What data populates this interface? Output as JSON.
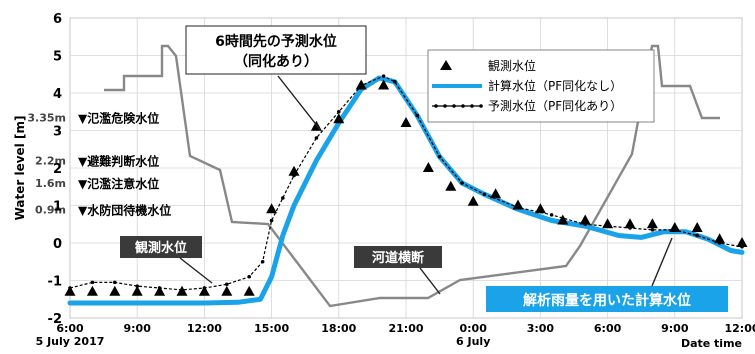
{
  "chart_data": {
    "type": "line",
    "ylabel": "Water level [m]",
    "ylim": [
      -2,
      6
    ],
    "xlim": [
      6,
      36
    ],
    "y_ticks": [
      "-2",
      "-1",
      "0",
      "1",
      "2",
      "3",
      "4",
      "5",
      "6"
    ],
    "x_ticks": [
      {
        "x": 6,
        "label": "6:00"
      },
      {
        "x": 9,
        "label": "9:00"
      },
      {
        "x": 12,
        "label": "12:00"
      },
      {
        "x": 15,
        "label": "15:00"
      },
      {
        "x": 18,
        "label": "18:00"
      },
      {
        "x": 21,
        "label": "21:00"
      },
      {
        "x": 24,
        "label": "0:00"
      },
      {
        "x": 27,
        "label": "3:00"
      },
      {
        "x": 30,
        "label": "6:00"
      },
      {
        "x": 33,
        "label": "9:00"
      },
      {
        "x": 36,
        "label": "12:00"
      }
    ],
    "date_labels": [
      {
        "x": 6,
        "label": "5 July 2017"
      },
      {
        "x": 24,
        "label": "6 July"
      }
    ],
    "x_axis_title": "Date time",
    "grid": true,
    "legend": {
      "position": "top-right",
      "entries": [
        "観測水位",
        "計算水位（PF同化なし）",
        "予測水位（PF同化あり）"
      ]
    },
    "thresholds": [
      {
        "name": "氾濫危険水位",
        "value_label": "3.35m",
        "y": 3.35
      },
      {
        "name": "避難判断水位",
        "value_label": "2.2m",
        "y": 2.2
      },
      {
        "name": "氾濫注意水位",
        "value_label": "1.6m",
        "y": 1.6
      },
      {
        "name": "水防団待機水位",
        "value_label": "0.9m",
        "y": 0.9
      }
    ],
    "annotations": {
      "forecast_box": [
        "6時間先の予測水位",
        "（同化あり）"
      ],
      "observed_box": "観測水位",
      "cross_section_box": "河道横断",
      "calc_box": "解析雨量を用いた計算水位"
    },
    "series": [
      {
        "name": "観測水位",
        "marker": "triangle",
        "points": [
          [
            6,
            -1.3
          ],
          [
            7,
            -1.3
          ],
          [
            8,
            -1.3
          ],
          [
            9,
            -1.3
          ],
          [
            10,
            -1.3
          ],
          [
            11,
            -1.3
          ],
          [
            12,
            -1.3
          ],
          [
            13,
            -1.3
          ],
          [
            14,
            -1.3
          ],
          [
            15,
            0.9
          ],
          [
            16,
            1.9
          ],
          [
            17,
            3.1
          ],
          [
            18,
            3.3
          ],
          [
            19,
            4.2
          ],
          [
            20,
            4.2
          ],
          [
            21,
            3.2
          ],
          [
            22,
            2.0
          ],
          [
            23,
            1.5
          ],
          [
            24,
            1.1
          ],
          [
            25,
            1.3
          ],
          [
            26,
            1.0
          ],
          [
            27,
            0.9
          ],
          [
            28,
            0.6
          ],
          [
            29,
            0.6
          ],
          [
            30,
            0.5
          ],
          [
            31,
            0.5
          ],
          [
            32,
            0.5
          ],
          [
            33,
            0.4
          ],
          [
            34,
            0.4
          ],
          [
            35,
            0.1
          ],
          [
            36,
            0.0
          ]
        ]
      },
      {
        "name": "計算水位（PF同化なし）",
        "color": "#1aa3e8",
        "points": [
          [
            6,
            -1.6
          ],
          [
            8,
            -1.6
          ],
          [
            10,
            -1.6
          ],
          [
            12,
            -1.6
          ],
          [
            13.5,
            -1.58
          ],
          [
            14.5,
            -1.5
          ],
          [
            15,
            -0.9
          ],
          [
            15.5,
            0.2
          ],
          [
            16,
            1.0
          ],
          [
            17,
            2.2
          ],
          [
            18,
            3.2
          ],
          [
            19,
            4.1
          ],
          [
            19.8,
            4.4
          ],
          [
            20.5,
            4.3
          ],
          [
            21.5,
            3.4
          ],
          [
            22.5,
            2.3
          ],
          [
            23.5,
            1.6
          ],
          [
            24.5,
            1.3
          ],
          [
            26,
            0.9
          ],
          [
            27.5,
            0.6
          ],
          [
            29,
            0.45
          ],
          [
            30.5,
            0.2
          ],
          [
            31.5,
            0.15
          ],
          [
            32.5,
            0.3
          ],
          [
            33.5,
            0.3
          ],
          [
            34.5,
            0.1
          ],
          [
            35.5,
            -0.2
          ],
          [
            36,
            -0.25
          ]
        ]
      },
      {
        "name": "予測水位（PF同化あり）",
        "color": "#000000",
        "marker": "dot",
        "points": [
          [
            6,
            -1.2
          ],
          [
            7,
            -1.05
          ],
          [
            8,
            -1.05
          ],
          [
            9,
            -1.15
          ],
          [
            10,
            -1.2
          ],
          [
            11,
            -1.25
          ],
          [
            12,
            -1.2
          ],
          [
            13,
            -1.1
          ],
          [
            14,
            -0.9
          ],
          [
            14.6,
            -0.5
          ],
          [
            15,
            0.6
          ],
          [
            15.5,
            1.2
          ],
          [
            16,
            1.8
          ],
          [
            17,
            2.8
          ],
          [
            18,
            3.5
          ],
          [
            19,
            4.2
          ],
          [
            20,
            4.45
          ],
          [
            20.5,
            4.3
          ],
          [
            21.5,
            3.4
          ],
          [
            22.5,
            2.3
          ],
          [
            23.5,
            1.6
          ],
          [
            24.5,
            1.3
          ],
          [
            26,
            0.95
          ],
          [
            27.5,
            0.75
          ],
          [
            29,
            0.5
          ],
          [
            30,
            0.45
          ],
          [
            31,
            0.4
          ],
          [
            32,
            0.35
          ],
          [
            33,
            0.35
          ],
          [
            34,
            0.2
          ],
          [
            35,
            0.0
          ],
          [
            36,
            -0.1
          ]
        ]
      }
    ]
  }
}
